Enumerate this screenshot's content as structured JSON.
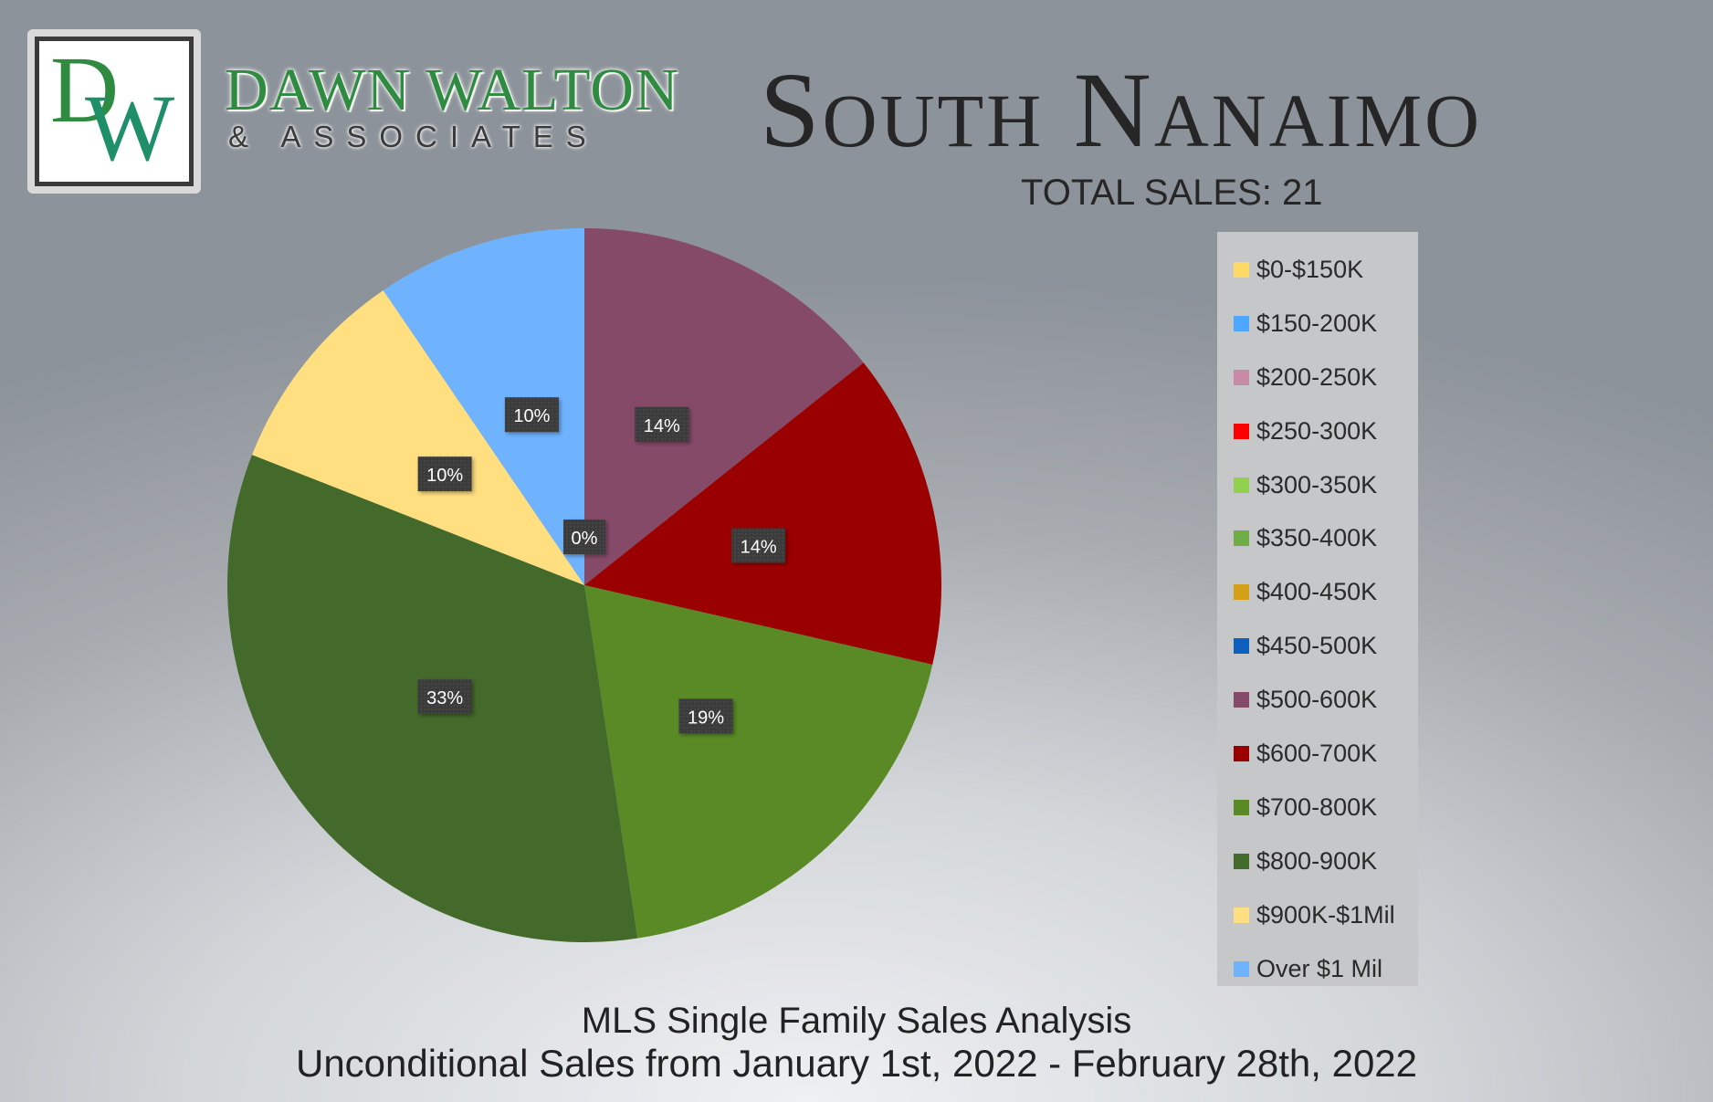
{
  "logo": {
    "monogram_d": "D",
    "monogram_w": "W",
    "brand_name": "DAWN WALTON",
    "brand_sub": "& ASSOCIATES"
  },
  "header": {
    "title": "South Nanaimo",
    "total_sales": "TOTAL SALES: 21"
  },
  "footer": {
    "line1": "MLS Single Family Sales Analysis",
    "line2": "Unconditional Sales from January 1st, 2022 - February 28th, 2022"
  },
  "chart_data": {
    "type": "pie",
    "title": "South Nanaimo",
    "legend_position": "right",
    "categories": [
      "$0-$150K",
      "$150-200K",
      "$200-250K",
      "$250-300K",
      "$300-350K",
      "$350-400K",
      "$400-450K",
      "$450-500K",
      "$500-600K",
      "$600-700K",
      "$700-800K",
      "$800-900K",
      "$900K-$1Mil",
      "Over $1 Mil"
    ],
    "values": [
      0,
      0,
      0,
      0,
      0,
      0,
      0,
      0,
      3,
      3,
      4,
      7,
      2,
      2
    ],
    "data_labels": [
      "0%",
      "",
      "",
      "",
      "",
      "",
      "",
      "",
      "14%",
      "14%",
      "19%",
      "33%",
      "10%",
      "10%"
    ],
    "colors": [
      "#ffd966",
      "#4da6ff",
      "#c98aa8",
      "#ff0000",
      "#92d050",
      "#70ad47",
      "#d4a017",
      "#0f5fbf",
      "#854a68",
      "#9b0000",
      "#5a8a26",
      "#436a2a",
      "#ffdf80",
      "#6fb3ff"
    ]
  }
}
